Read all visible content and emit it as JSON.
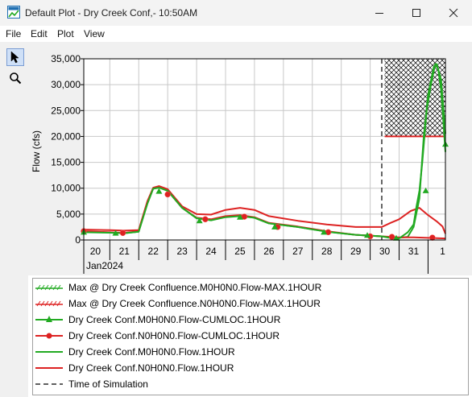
{
  "window": {
    "title": "Default Plot - Dry Creek Conf,- 10:50AM",
    "controls": [
      "minimize",
      "maximize",
      "close"
    ]
  },
  "menu": [
    "File",
    "Edit",
    "Plot",
    "View"
  ],
  "tools": [
    {
      "name": "pointer-tool",
      "icon": "arrow-pointer-icon",
      "selected": true
    },
    {
      "name": "zoom-tool",
      "icon": "magnifier-icon",
      "selected": false
    }
  ],
  "chart_data": {
    "type": "line",
    "ylabel": "Flow (cfs)",
    "xlabel": "",
    "ylim": [
      0,
      35000
    ],
    "yticks": [
      0,
      5000,
      10000,
      15000,
      20000,
      25000,
      30000,
      35000
    ],
    "ytick_labels": [
      "0",
      "5,000",
      "10,000",
      "15,000",
      "20,000",
      "25,000",
      "30,000",
      "35,000"
    ],
    "xlim": [
      19.6,
      32.1
    ],
    "xtick_labels": [
      {
        "label": "20",
        "day": 20
      },
      {
        "label": "21",
        "day": 21
      },
      {
        "label": "22",
        "day": 22
      },
      {
        "label": "23",
        "day": 23
      },
      {
        "label": "24",
        "day": 24
      },
      {
        "label": "25",
        "day": 25
      },
      {
        "label": "26",
        "day": 26
      },
      {
        "label": "27",
        "day": 27
      },
      {
        "label": "28",
        "day": 28
      },
      {
        "label": "29",
        "day": 29
      },
      {
        "label": "30",
        "day": 30
      },
      {
        "label": "31",
        "day": 31
      },
      {
        "label": "1",
        "day": 32
      }
    ],
    "x_group_label": "Jan2024",
    "grid": true,
    "time_of_simulation_day": 29.9,
    "series": [
      {
        "name": "Max @ Dry Creek Confluence.M0H0N0.Flow-MAX.1HOUR",
        "color": "#22aa22",
        "style": "hatch-max",
        "x": [
          31.25,
          32.1
        ],
        "values": [
          20000,
          20000
        ]
      },
      {
        "name": "Max @ Dry Creek Confluence.N0H0N0.Flow-MAX.1HOUR",
        "color": "#dd2222",
        "style": "hatch-max",
        "x": [
          30.0,
          32.1
        ],
        "values": [
          20000,
          20000
        ]
      },
      {
        "name": "Dry Creek Conf.M0H0N0.Flow-CUMLOC.1HOUR",
        "color": "#22aa22",
        "marker": "triangle",
        "x": [
          19.6,
          20.5,
          21.0,
          21.5,
          21.8,
          22.0,
          22.2,
          22.5,
          23.0,
          23.5,
          24.0,
          24.5,
          25.0,
          25.5,
          26.0,
          27.0,
          28.0,
          29.0,
          29.9,
          30.2,
          30.5,
          30.8,
          31.0,
          31.1,
          31.2,
          31.3,
          31.45,
          31.6,
          31.75,
          31.85,
          31.95,
          32.1
        ],
        "values": [
          1500,
          1400,
          1300,
          1600,
          7000,
          9900,
          10100,
          9500,
          6200,
          4200,
          3800,
          4400,
          4600,
          4300,
          3200,
          2500,
          1600,
          1000,
          700,
          400,
          300,
          1500,
          3000,
          6500,
          9500,
          15000,
          25000,
          30000,
          34000,
          33000,
          29000,
          17000
        ],
        "markers": [
          {
            "x": 19.6,
            "y": 1500
          },
          {
            "x": 20.7,
            "y": 1300
          },
          {
            "x": 22.2,
            "y": 9400
          },
          {
            "x": 23.6,
            "y": 3700
          },
          {
            "x": 25.0,
            "y": 4400
          },
          {
            "x": 26.2,
            "y": 2500
          },
          {
            "x": 27.9,
            "y": 1500
          },
          {
            "x": 29.4,
            "y": 900
          },
          {
            "x": 30.4,
            "y": 350
          },
          {
            "x": 31.42,
            "y": 9500
          },
          {
            "x": 32.1,
            "y": 18500
          }
        ]
      },
      {
        "name": "Dry Creek Conf.N0H0N0.Flow-CUMLOC.1HOUR",
        "color": "#dd2222",
        "marker": "circle",
        "x": [
          19.6,
          20.5,
          21.0,
          21.5,
          21.8,
          22.0,
          22.2,
          22.5,
          23.0,
          23.5,
          24.0,
          24.5,
          25.0,
          25.5,
          26.0,
          27.0,
          28.0,
          29.0,
          29.9,
          30.2,
          30.5,
          31.0,
          31.5,
          32.1
        ],
        "values": [
          1700,
          1500,
          1350,
          1700,
          7200,
          10000,
          10200,
          9500,
          6200,
          4300,
          4000,
          4600,
          4800,
          4400,
          3300,
          2600,
          1700,
          1000,
          700,
          600,
          500,
          500,
          400,
          300
        ],
        "markers": [
          {
            "x": 19.6,
            "y": 1700
          },
          {
            "x": 20.95,
            "y": 1350
          },
          {
            "x": 22.5,
            "y": 8800
          },
          {
            "x": 23.8,
            "y": 4000
          },
          {
            "x": 25.15,
            "y": 4500
          },
          {
            "x": 26.3,
            "y": 2500
          },
          {
            "x": 28.05,
            "y": 1500
          },
          {
            "x": 29.5,
            "y": 700
          },
          {
            "x": 30.25,
            "y": 600
          },
          {
            "x": 31.65,
            "y": 450
          }
        ]
      },
      {
        "name": "Dry Creek Conf.M0H0N0.Flow.1HOUR",
        "color": "#22aa22",
        "marker": "none",
        "x": [
          19.6,
          20.5,
          21.0,
          21.5,
          21.8,
          22.0,
          22.2,
          22.5,
          23.0,
          23.5,
          24.0,
          24.5,
          25.0,
          25.5,
          26.0,
          27.0,
          28.0,
          29.0,
          29.9,
          30.3,
          30.8,
          31.0,
          31.2,
          31.35,
          31.5,
          31.7,
          31.8,
          31.95,
          32.1
        ],
        "values": [
          1600,
          1450,
          1300,
          1600,
          7100,
          10000,
          10200,
          9500,
          6200,
          4200,
          3900,
          4500,
          4700,
          4300,
          3200,
          2500,
          1600,
          1000,
          700,
          300,
          600,
          2500,
          8000,
          20000,
          28000,
          33500,
          34000,
          31000,
          20500
        ]
      },
      {
        "name": "Dry Creek Conf.N0H0N0.Flow.1HOUR",
        "color": "#dd2222",
        "marker": "none",
        "x": [
          19.6,
          20.5,
          21.0,
          21.5,
          21.8,
          22.0,
          22.2,
          22.5,
          23.0,
          23.5,
          24.0,
          24.5,
          25.0,
          25.5,
          26.0,
          27.0,
          28.0,
          29.0,
          29.9,
          30.2,
          30.5,
          30.9,
          31.2,
          31.5,
          31.8,
          32.0,
          32.1
        ],
        "values": [
          2000,
          1900,
          1800,
          1900,
          7500,
          10100,
          10400,
          9800,
          6500,
          5000,
          4900,
          5800,
          6200,
          5800,
          4600,
          3700,
          3000,
          2500,
          2500,
          3300,
          4000,
          5600,
          6200,
          4800,
          3600,
          2600,
          1200
        ]
      },
      {
        "name": "Time of Simulation",
        "color": "#000000",
        "style": "dashed"
      }
    ]
  },
  "legend": [
    {
      "label": "Max @ Dry Creek Confluence.M0H0N0.Flow-MAX.1HOUR",
      "swatch": "hatch",
      "color": "#22aa22"
    },
    {
      "label": "Max @ Dry Creek Confluence.N0H0N0.Flow-MAX.1HOUR",
      "swatch": "hatch",
      "color": "#dd2222"
    },
    {
      "label": "Dry Creek Conf.M0H0N0.Flow-CUMLOC.1HOUR",
      "swatch": "triangle",
      "color": "#22aa22"
    },
    {
      "label": "Dry Creek Conf.N0H0N0.Flow-CUMLOC.1HOUR",
      "swatch": "circle",
      "color": "#dd2222"
    },
    {
      "label": "Dry Creek Conf.M0H0N0.Flow.1HOUR",
      "swatch": "line",
      "color": "#22aa22"
    },
    {
      "label": "Dry Creek Conf.N0H0N0.Flow.1HOUR",
      "swatch": "line",
      "color": "#dd2222"
    },
    {
      "label": "Time of Simulation",
      "swatch": "dashed",
      "color": "#000000"
    }
  ]
}
